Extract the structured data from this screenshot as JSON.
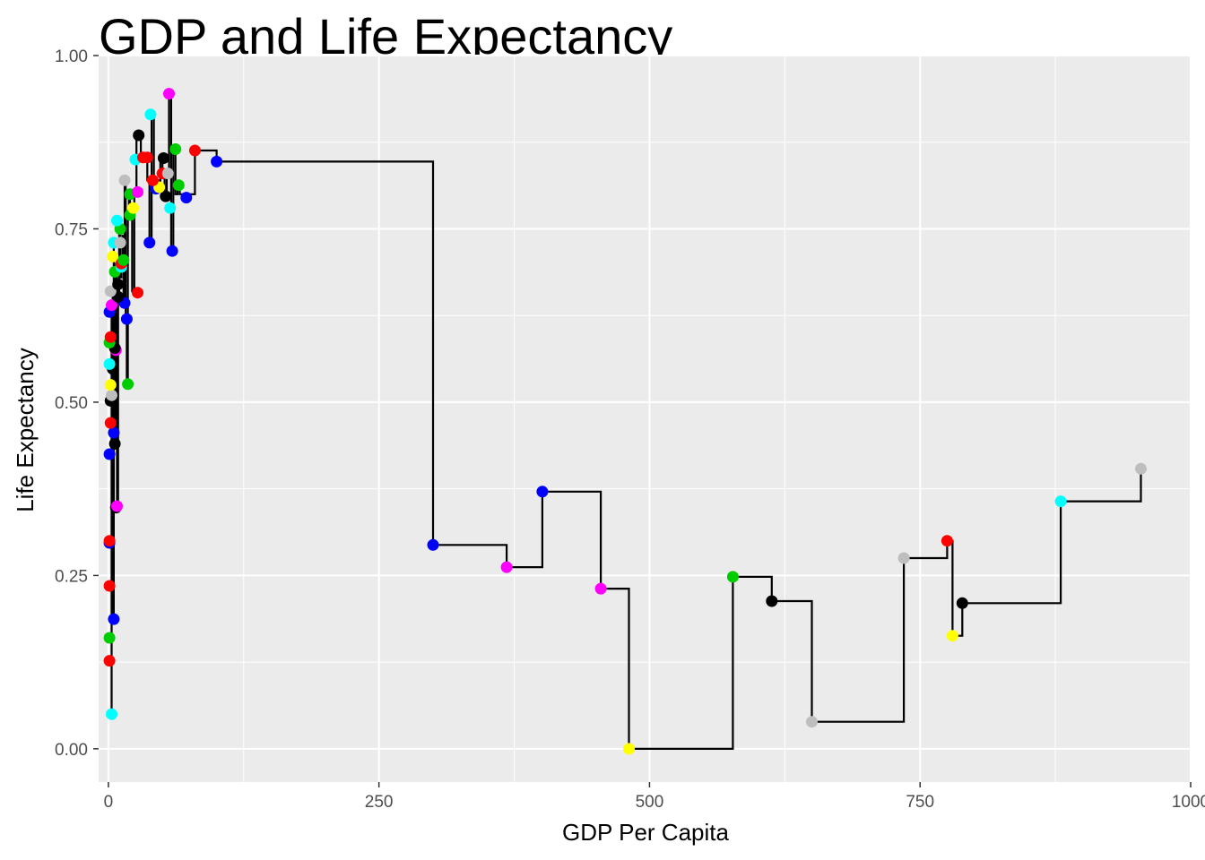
{
  "chart_data": {
    "type": "scatter",
    "title": "GDP and Life Expectancy",
    "xlabel": "GDP Per Capita",
    "ylabel": "Life Expectancy",
    "xlim": [
      -9,
      1000
    ],
    "ylim": [
      -0.048,
      1.0
    ],
    "x_ticks": [
      0,
      250,
      500,
      750,
      1000
    ],
    "x_tick_labels": [
      "0",
      "250",
      "500",
      "750",
      "1000"
    ],
    "y_ticks": [
      0.0,
      0.25,
      0.5,
      0.75,
      1.0
    ],
    "y_tick_labels": [
      "0.00",
      "0.25",
      "0.50",
      "0.75",
      "1.00"
    ],
    "grid": true,
    "legend": "none",
    "step_line": {
      "color": "#000000",
      "x": [
        3,
        3,
        3,
        3,
        3,
        3,
        3,
        4,
        4,
        4,
        4,
        5,
        5,
        5,
        6,
        6,
        6,
        7,
        7,
        7,
        8,
        8,
        9,
        9,
        10,
        10,
        11,
        11,
        12,
        12,
        13,
        13,
        14,
        14,
        15,
        15,
        16,
        16,
        17,
        17,
        18,
        18,
        19,
        19,
        20,
        20,
        22,
        22,
        24,
        24,
        26,
        26,
        28,
        28,
        30,
        30,
        32,
        32,
        34,
        34,
        36,
        36,
        38,
        38,
        40,
        40,
        42,
        42,
        44,
        44,
        46,
        46,
        48,
        48,
        50,
        50,
        52,
        52,
        54,
        54,
        56,
        56,
        58,
        58,
        60,
        60,
        62,
        62,
        64,
        64,
        66,
        66,
        68,
        68,
        72,
        72,
        80,
        80,
        100,
        100,
        300,
        300,
        368,
        368,
        401,
        401,
        455,
        455,
        481,
        481,
        577,
        577,
        613,
        613,
        650,
        650,
        735,
        735,
        775,
        775,
        780,
        780,
        789,
        789,
        880,
        880,
        954,
        954
      ],
      "y": [
        0.05,
        0.3,
        0.5,
        0.64,
        0.35,
        0.55,
        0.3,
        0.3,
        0.6,
        0.66,
        0.19,
        0.19,
        0.73,
        0.46,
        0.46,
        0.68,
        0.44,
        0.44,
        0.58,
        0.7,
        0.7,
        0.35,
        0.35,
        0.66,
        0.66,
        0.76,
        0.76,
        0.68,
        0.68,
        0.7,
        0.7,
        0.74,
        0.74,
        0.64,
        0.64,
        0.82,
        0.82,
        0.62,
        0.62,
        0.53,
        0.53,
        0.77,
        0.77,
        0.8,
        0.8,
        0.78,
        0.78,
        0.66,
        0.66,
        0.8,
        0.8,
        0.88,
        0.88,
        0.885,
        0.885,
        0.85,
        0.85,
        0.85,
        0.85,
        0.85,
        0.85,
        0.82,
        0.82,
        0.73,
        0.73,
        0.915,
        0.915,
        0.81,
        0.81,
        0.82,
        0.82,
        0.81,
        0.81,
        0.85,
        0.85,
        0.83,
        0.83,
        0.8,
        0.8,
        0.83,
        0.83,
        0.945,
        0.945,
        0.72,
        0.72,
        0.865,
        0.865,
        0.8,
        0.8,
        0.815,
        0.815,
        0.8,
        0.8,
        0.8,
        0.8,
        0.8,
        0.8,
        0.863,
        0.863,
        0.847,
        0.847,
        0.294,
        0.294,
        0.262,
        0.262,
        0.371,
        0.371,
        0.231,
        0.231,
        0.0,
        0.0,
        0.248,
        0.248,
        0.213,
        0.213,
        0.039,
        0.039,
        0.275,
        0.275,
        0.3,
        0.3,
        0.163,
        0.163,
        0.21,
        0.21,
        0.357,
        0.357,
        0.404
      ]
    },
    "points": [
      {
        "x": 3,
        "y": 0.05,
        "color": "#00FFFF"
      },
      {
        "x": 1,
        "y": 0.127,
        "color": "#FF0000"
      },
      {
        "x": 1,
        "y": 0.16,
        "color": "#00CD00"
      },
      {
        "x": 5,
        "y": 0.187,
        "color": "#0000FF"
      },
      {
        "x": 1,
        "y": 0.235,
        "color": "#FF0000"
      },
      {
        "x": 1,
        "y": 0.297,
        "color": "#0000FF"
      },
      {
        "x": 1,
        "y": 0.3,
        "color": "#FF0000"
      },
      {
        "x": 7,
        "y": 0.348,
        "color": "#000000"
      },
      {
        "x": 8,
        "y": 0.35,
        "color": "#FF00FF"
      },
      {
        "x": 1,
        "y": 0.425,
        "color": "#0000FF"
      },
      {
        "x": 6,
        "y": 0.44,
        "color": "#000000"
      },
      {
        "x": 5,
        "y": 0.456,
        "color": "#0000FF"
      },
      {
        "x": 2,
        "y": 0.47,
        "color": "#FF0000"
      },
      {
        "x": 2,
        "y": 0.502,
        "color": "#000000"
      },
      {
        "x": 3,
        "y": 0.51,
        "color": "#BEBEBE"
      },
      {
        "x": 2,
        "y": 0.525,
        "color": "#FFFF00"
      },
      {
        "x": 18,
        "y": 0.526,
        "color": "#00CD00"
      },
      {
        "x": 4,
        "y": 0.548,
        "color": "#000000"
      },
      {
        "x": 1,
        "y": 0.555,
        "color": "#00FFFF"
      },
      {
        "x": 7,
        "y": 0.575,
        "color": "#FF00FF"
      },
      {
        "x": 6,
        "y": 0.578,
        "color": "#000000"
      },
      {
        "x": 1,
        "y": 0.586,
        "color": "#00CD00"
      },
      {
        "x": 2,
        "y": 0.594,
        "color": "#FF0000"
      },
      {
        "x": 17,
        "y": 0.62,
        "color": "#0000FF"
      },
      {
        "x": 1,
        "y": 0.63,
        "color": "#0000FF"
      },
      {
        "x": 3,
        "y": 0.64,
        "color": "#FF00FF"
      },
      {
        "x": 15,
        "y": 0.643,
        "color": "#0000FF"
      },
      {
        "x": 9,
        "y": 0.652,
        "color": "#000000"
      },
      {
        "x": 27,
        "y": 0.658,
        "color": "#FF0000"
      },
      {
        "x": 2,
        "y": 0.66,
        "color": "#BEBEBE"
      },
      {
        "x": 9,
        "y": 0.67,
        "color": "#000000"
      },
      {
        "x": 6,
        "y": 0.688,
        "color": "#00CD00"
      },
      {
        "x": 12,
        "y": 0.695,
        "color": "#00FFFF"
      },
      {
        "x": 4,
        "y": 0.71,
        "color": "#FFFF00"
      },
      {
        "x": 12,
        "y": 0.7,
        "color": "#FF0000"
      },
      {
        "x": 14,
        "y": 0.705,
        "color": "#00CD00"
      },
      {
        "x": 5,
        "y": 0.73,
        "color": "#00FFFF"
      },
      {
        "x": 11,
        "y": 0.73,
        "color": "#BEBEBE"
      },
      {
        "x": 38,
        "y": 0.73,
        "color": "#0000FF"
      },
      {
        "x": 11,
        "y": 0.75,
        "color": "#00CD00"
      },
      {
        "x": 8,
        "y": 0.762,
        "color": "#00FFFF"
      },
      {
        "x": 20,
        "y": 0.77,
        "color": "#00CD00"
      },
      {
        "x": 23,
        "y": 0.78,
        "color": "#FFFF00"
      },
      {
        "x": 59,
        "y": 0.718,
        "color": "#0000FF"
      },
      {
        "x": 57,
        "y": 0.78,
        "color": "#00FFFF"
      },
      {
        "x": 72,
        "y": 0.795,
        "color": "#0000FF"
      },
      {
        "x": 53,
        "y": 0.797,
        "color": "#000000"
      },
      {
        "x": 20,
        "y": 0.8,
        "color": "#00CD00"
      },
      {
        "x": 27,
        "y": 0.803,
        "color": "#FF00FF"
      },
      {
        "x": 44,
        "y": 0.808,
        "color": "#0000FF"
      },
      {
        "x": 47,
        "y": 0.81,
        "color": "#FFFF00"
      },
      {
        "x": 65,
        "y": 0.813,
        "color": "#00CD00"
      },
      {
        "x": 15,
        "y": 0.82,
        "color": "#BEBEBE"
      },
      {
        "x": 41,
        "y": 0.82,
        "color": "#FF0000"
      },
      {
        "x": 50,
        "y": 0.83,
        "color": "#FF0000"
      },
      {
        "x": 55,
        "y": 0.83,
        "color": "#BEBEBE"
      },
      {
        "x": 25,
        "y": 0.85,
        "color": "#00FFFF"
      },
      {
        "x": 32,
        "y": 0.853,
        "color": "#FF0000"
      },
      {
        "x": 36,
        "y": 0.853,
        "color": "#FF0000"
      },
      {
        "x": 51,
        "y": 0.852,
        "color": "#000000"
      },
      {
        "x": 62,
        "y": 0.865,
        "color": "#00CD00"
      },
      {
        "x": 80,
        "y": 0.863,
        "color": "#FF0000"
      },
      {
        "x": 100,
        "y": 0.847,
        "color": "#0000FF"
      },
      {
        "x": 28,
        "y": 0.885,
        "color": "#000000"
      },
      {
        "x": 39,
        "y": 0.915,
        "color": "#00FFFF"
      },
      {
        "x": 56,
        "y": 0.945,
        "color": "#FF00FF"
      },
      {
        "x": 300,
        "y": 0.294,
        "color": "#0000FF"
      },
      {
        "x": 368,
        "y": 0.262,
        "color": "#FF00FF"
      },
      {
        "x": 401,
        "y": 0.371,
        "color": "#0000FF"
      },
      {
        "x": 455,
        "y": 0.231,
        "color": "#FF00FF"
      },
      {
        "x": 481,
        "y": 0.0,
        "color": "#FFFF00"
      },
      {
        "x": 577,
        "y": 0.248,
        "color": "#00CD00"
      },
      {
        "x": 613,
        "y": 0.213,
        "color": "#000000"
      },
      {
        "x": 650,
        "y": 0.039,
        "color": "#BEBEBE"
      },
      {
        "x": 735,
        "y": 0.275,
        "color": "#BEBEBE"
      },
      {
        "x": 775,
        "y": 0.3,
        "color": "#FF0000"
      },
      {
        "x": 780,
        "y": 0.163,
        "color": "#FFFF00"
      },
      {
        "x": 789,
        "y": 0.21,
        "color": "#000000"
      },
      {
        "x": 880,
        "y": 0.357,
        "color": "#00FFFF"
      },
      {
        "x": 954,
        "y": 0.404,
        "color": "#BEBEBE"
      }
    ],
    "colors": {
      "panel_background": "#EBEBEB",
      "grid": "#FFFFFF",
      "tick_label": "#4D4D4D",
      "axis_tick": "#333333"
    }
  }
}
